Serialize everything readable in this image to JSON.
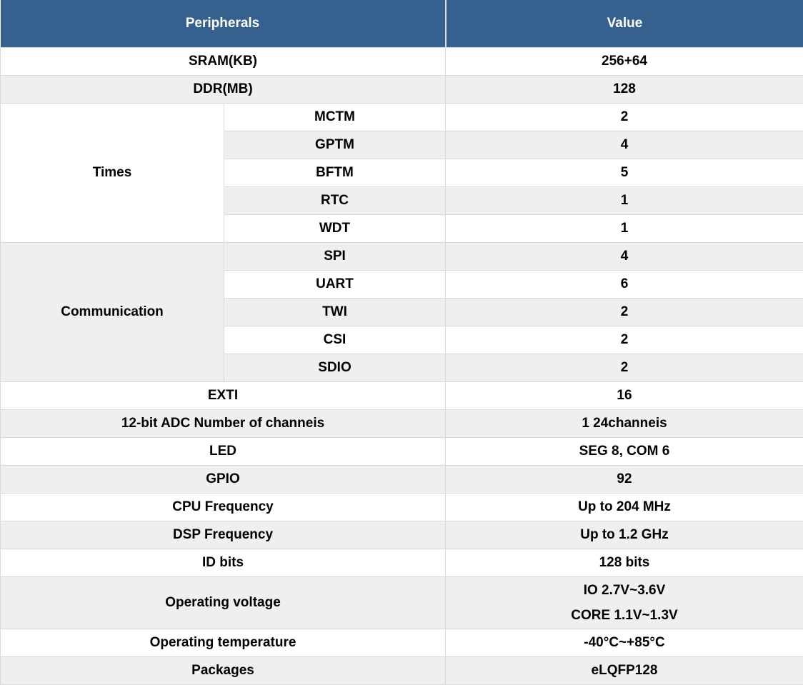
{
  "header": {
    "peripherals_label": "Peripherals",
    "value_label": "Value"
  },
  "simple_rows": {
    "sram": {
      "label": "SRAM(KB)",
      "value": "256+64"
    },
    "ddr": {
      "label": "DDR(MB)",
      "value": "128"
    },
    "exti": {
      "label": "EXTI",
      "value": "16"
    },
    "adc": {
      "label": "12-bit ADC Number of channeis",
      "value": "1 24channeis"
    },
    "led": {
      "label": "LED",
      "value": "SEG 8, COM 6"
    },
    "gpio": {
      "label": "GPIO",
      "value": "92"
    },
    "cpu_frequency": {
      "label": "CPU Frequency",
      "value": "Up to 204 MHz"
    },
    "dsp_frequency": {
      "label": "DSP Frequency",
      "value": "Up to 1.2 GHz"
    },
    "id_bits": {
      "label": "ID bits",
      "value": "128 bits"
    },
    "operating_voltage": {
      "label": "Operating voltage",
      "value_line1": "IO 2.7V~3.6V",
      "value_line2": "CORE 1.1V~1.3V"
    },
    "operating_temperature": {
      "label": "Operating temperature",
      "value": "-40°C~+85°C"
    },
    "packages": {
      "label": "Packages",
      "value": "eLQFP128"
    }
  },
  "groups": {
    "times": {
      "label": "Times",
      "items": [
        {
          "label": "MCTM",
          "value": "2"
        },
        {
          "label": "GPTM",
          "value": "4"
        },
        {
          "label": "BFTM",
          "value": "5"
        },
        {
          "label": "RTC",
          "value": "1"
        },
        {
          "label": "WDT",
          "value": "1"
        }
      ]
    },
    "communication": {
      "label": "Communication",
      "items": [
        {
          "label": "SPI",
          "value": "4"
        },
        {
          "label": "UART",
          "value": "6"
        },
        {
          "label": "TWI",
          "value": "2"
        },
        {
          "label": "CSI",
          "value": "2"
        },
        {
          "label": "SDIO",
          "value": "2"
        }
      ]
    }
  },
  "colors": {
    "header_bg": "#36618f",
    "header_text": "#ffffff",
    "row_bg": "#ffffff",
    "row_alt_bg": "#efefef",
    "border": "#d9d9d9",
    "text": "#000000"
  }
}
